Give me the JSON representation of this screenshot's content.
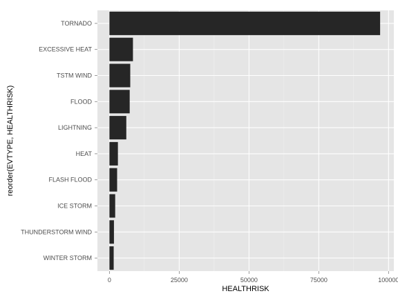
{
  "chart_data": {
    "type": "bar",
    "orientation": "horizontal",
    "xlabel": "HEALTHRISK",
    "ylabel": "reorder(EVTYPE, HEALTHRISK)",
    "categories": [
      "TORNADO",
      "EXCESSIVE HEAT",
      "TSTM WIND",
      "FLOOD",
      "LIGHTNING",
      "HEAT",
      "FLASH FLOOD",
      "ICE STORM",
      "THUNDERSTORM WIND",
      "WINTER STORM"
    ],
    "values": [
      96979,
      8428,
      7461,
      7259,
      6046,
      3037,
      2755,
      2064,
      1621,
      1527
    ],
    "xlim": [
      -4300,
      101900
    ],
    "xticks": [
      0,
      25000,
      50000,
      75000,
      100000
    ],
    "xtick_labels": [
      "0",
      "25000",
      "50000",
      "75000",
      "100000"
    ],
    "grid": true,
    "colors": {
      "bar": "#262626",
      "panel": "#e5e5e5",
      "grid_major": "#ffffff",
      "grid_minor": "#f0f0f0"
    }
  }
}
